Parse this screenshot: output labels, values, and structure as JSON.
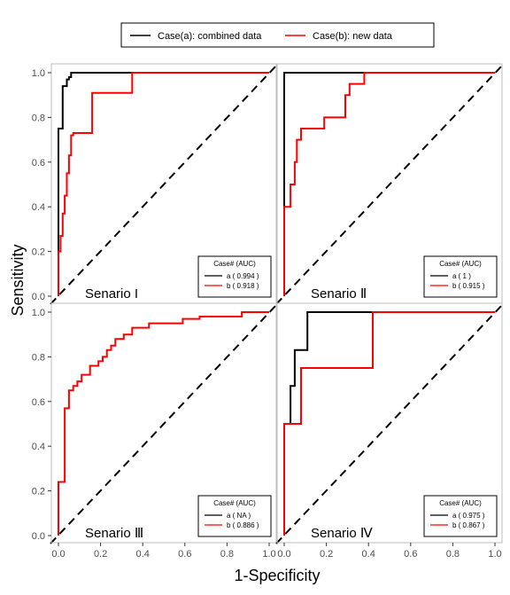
{
  "chart_data": {
    "type": "line",
    "xlabel": "1-Specificity",
    "ylabel": "Sensitivity",
    "xlim": [
      0,
      1
    ],
    "ylim": [
      0,
      1
    ],
    "x_ticks": [
      "0.0",
      "0.2",
      "0.4",
      "0.6",
      "0.8",
      "1.0"
    ],
    "y_ticks": [
      "0.0",
      "0.2",
      "0.4",
      "0.6",
      "0.8",
      "1.0"
    ],
    "legend": {
      "placement": "top-center",
      "entries": [
        {
          "label": "Case(a): combined data",
          "color": "#000000"
        },
        {
          "label": "Case(b): new data",
          "color": "#ff0000"
        }
      ]
    },
    "inset_legend_title": "Case# (AUC)",
    "diagonal_reference": "dashed",
    "panels": [
      {
        "label": "Senario I",
        "inset": [
          {
            "text": "a ( 0.994 )",
            "color": "#000000"
          },
          {
            "text": "b ( 0.918 )",
            "color": "#ff0000"
          }
        ],
        "series": [
          {
            "color": "#000000",
            "points": [
              [
                0,
                0
              ],
              [
                0,
                0.18
              ],
              [
                0,
                0.75
              ],
              [
                0.02,
                0.75
              ],
              [
                0.02,
                0.94
              ],
              [
                0.04,
                0.94
              ],
              [
                0.04,
                0.97
              ],
              [
                0.05,
                0.97
              ],
              [
                0.05,
                0.98
              ],
              [
                0.06,
                0.98
              ],
              [
                0.06,
                1.0
              ],
              [
                1.0,
                1.0
              ]
            ]
          },
          {
            "color": "#ff0000",
            "points": [
              [
                0,
                0
              ],
              [
                0,
                0.2
              ],
              [
                0.01,
                0.2
              ],
              [
                0.01,
                0.27
              ],
              [
                0.02,
                0.27
              ],
              [
                0.02,
                0.37
              ],
              [
                0.03,
                0.37
              ],
              [
                0.03,
                0.45
              ],
              [
                0.04,
                0.45
              ],
              [
                0.04,
                0.55
              ],
              [
                0.05,
                0.55
              ],
              [
                0.05,
                0.63
              ],
              [
                0.06,
                0.63
              ],
              [
                0.06,
                0.72
              ],
              [
                0.07,
                0.72
              ],
              [
                0.07,
                0.73
              ],
              [
                0.16,
                0.73
              ],
              [
                0.16,
                0.91
              ],
              [
                0.35,
                0.91
              ],
              [
                0.35,
                1.0
              ],
              [
                1.0,
                1.0
              ]
            ]
          }
        ]
      },
      {
        "label": "Senario Ⅱ",
        "inset": [
          {
            "text": "a ( 1 )",
            "color": "#000000"
          },
          {
            "text": "b ( 0.915 )",
            "color": "#ff0000"
          }
        ],
        "series": [
          {
            "color": "#000000",
            "points": [
              [
                0,
                0
              ],
              [
                0,
                1.0
              ],
              [
                1.0,
                1.0
              ]
            ]
          },
          {
            "color": "#ff0000",
            "points": [
              [
                0,
                0
              ],
              [
                0,
                0.4
              ],
              [
                0.03,
                0.4
              ],
              [
                0.03,
                0.5
              ],
              [
                0.05,
                0.5
              ],
              [
                0.05,
                0.6
              ],
              [
                0.06,
                0.6
              ],
              [
                0.06,
                0.7
              ],
              [
                0.08,
                0.7
              ],
              [
                0.08,
                0.75
              ],
              [
                0.19,
                0.75
              ],
              [
                0.19,
                0.8
              ],
              [
                0.29,
                0.8
              ],
              [
                0.29,
                0.9
              ],
              [
                0.31,
                0.9
              ],
              [
                0.31,
                0.95
              ],
              [
                0.38,
                0.95
              ],
              [
                0.38,
                1.0
              ],
              [
                1.0,
                1.0
              ]
            ]
          }
        ]
      },
      {
        "label": "Senario Ⅲ",
        "inset": [
          {
            "text": "a ( NA )",
            "color": "#000000"
          },
          {
            "text": "b ( 0.886 )",
            "color": "#ff0000"
          }
        ],
        "series": [
          {
            "color": "#ff0000",
            "points": [
              [
                0,
                0
              ],
              [
                0,
                0.24
              ],
              [
                0.03,
                0.24
              ],
              [
                0.03,
                0.57
              ],
              [
                0.05,
                0.57
              ],
              [
                0.05,
                0.65
              ],
              [
                0.07,
                0.65
              ],
              [
                0.07,
                0.67
              ],
              [
                0.09,
                0.67
              ],
              [
                0.09,
                0.69
              ],
              [
                0.11,
                0.69
              ],
              [
                0.11,
                0.72
              ],
              [
                0.15,
                0.72
              ],
              [
                0.15,
                0.76
              ],
              [
                0.19,
                0.76
              ],
              [
                0.19,
                0.78
              ],
              [
                0.21,
                0.78
              ],
              [
                0.21,
                0.8
              ],
              [
                0.23,
                0.8
              ],
              [
                0.23,
                0.83
              ],
              [
                0.25,
                0.83
              ],
              [
                0.25,
                0.85
              ],
              [
                0.27,
                0.85
              ],
              [
                0.27,
                0.88
              ],
              [
                0.31,
                0.88
              ],
              [
                0.31,
                0.9
              ],
              [
                0.35,
                0.9
              ],
              [
                0.35,
                0.93
              ],
              [
                0.43,
                0.93
              ],
              [
                0.43,
                0.95
              ],
              [
                0.59,
                0.95
              ],
              [
                0.59,
                0.97
              ],
              [
                0.67,
                0.97
              ],
              [
                0.67,
                0.98
              ],
              [
                0.87,
                0.98
              ],
              [
                0.87,
                1.0
              ],
              [
                1.0,
                1.0
              ]
            ]
          }
        ]
      },
      {
        "label": "Senario Ⅳ",
        "inset": [
          {
            "text": "a ( 0.975 )",
            "color": "#000000"
          },
          {
            "text": "b ( 0.867 )",
            "color": "#ff0000"
          }
        ],
        "series": [
          {
            "color": "#000000",
            "points": [
              [
                0,
                0
              ],
              [
                0,
                0.5
              ],
              [
                0.03,
                0.5
              ],
              [
                0.03,
                0.67
              ],
              [
                0.05,
                0.67
              ],
              [
                0.05,
                0.83
              ],
              [
                0.11,
                0.83
              ],
              [
                0.11,
                1.0
              ],
              [
                1.0,
                1.0
              ]
            ]
          },
          {
            "color": "#ff0000",
            "points": [
              [
                0,
                0
              ],
              [
                0,
                0.5
              ],
              [
                0.08,
                0.5
              ],
              [
                0.08,
                0.75
              ],
              [
                0.42,
                0.75
              ],
              [
                0.42,
                1.0
              ],
              [
                1.0,
                1.0
              ]
            ]
          }
        ]
      }
    ]
  }
}
